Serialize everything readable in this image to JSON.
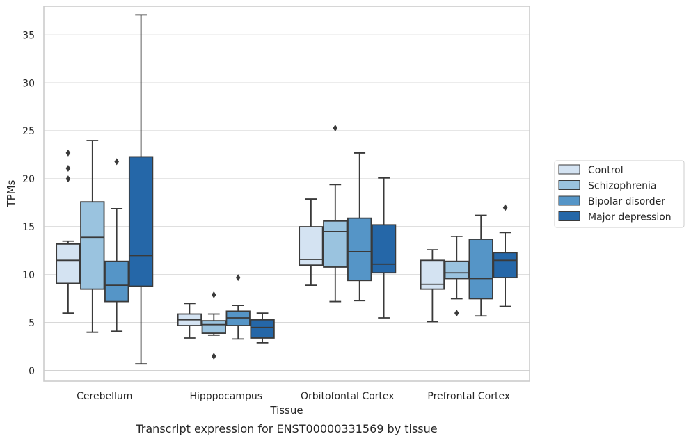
{
  "chart_data": {
    "type": "boxplot",
    "title": "",
    "caption": "Transcript expression for ENST00000331569 by tissue",
    "xlabel": "Tissue",
    "ylabel": "TPMs",
    "ylim": [
      -1.1,
      38.0
    ],
    "yticks": [
      0,
      5,
      10,
      15,
      20,
      25,
      30,
      35
    ],
    "ytick_labels": [
      "0",
      "5",
      "10",
      "15",
      "20",
      "25",
      "30",
      "35"
    ],
    "grid": "horizontal",
    "legend_position": "right",
    "categories": [
      "Cerebellum",
      "Hipppocampus",
      "Orbitofontal Cortex",
      "Prefrontal Cortex"
    ],
    "series": [
      {
        "name": "Control",
        "color": "#d4e3f2",
        "boxes": [
          {
            "whislo": 6.0,
            "q1": 9.1,
            "med": 11.5,
            "q3": 13.2,
            "whishi": 13.5,
            "fliers": [
              20.0,
              21.1,
              22.7
            ]
          },
          {
            "whislo": 3.4,
            "q1": 4.7,
            "med": 5.3,
            "q3": 5.9,
            "whishi": 7.0,
            "fliers": []
          },
          {
            "whislo": 8.9,
            "q1": 11.0,
            "med": 11.6,
            "q3": 15.0,
            "whishi": 17.9,
            "fliers": []
          },
          {
            "whislo": 5.1,
            "q1": 8.5,
            "med": 9.0,
            "q3": 11.5,
            "whishi": 12.6,
            "fliers": []
          }
        ]
      },
      {
        "name": "Schizophrenia",
        "color": "#9ac3df",
        "boxes": [
          {
            "whislo": 4.0,
            "q1": 8.5,
            "med": 13.9,
            "q3": 17.6,
            "whishi": 24.0,
            "fliers": []
          },
          {
            "whislo": 3.7,
            "q1": 3.9,
            "med": 4.8,
            "q3": 5.2,
            "whishi": 5.9,
            "fliers": [
              1.5,
              7.9
            ]
          },
          {
            "whislo": 7.2,
            "q1": 10.8,
            "med": 14.5,
            "q3": 15.6,
            "whishi": 19.4,
            "fliers": [
              25.3
            ]
          },
          {
            "whislo": 7.5,
            "q1": 9.6,
            "med": 10.2,
            "q3": 11.4,
            "whishi": 14.0,
            "fliers": [
              6.0
            ]
          }
        ]
      },
      {
        "name": "Bipolar disorder",
        "color": "#5595c7",
        "boxes": [
          {
            "whislo": 4.1,
            "q1": 7.2,
            "med": 8.9,
            "q3": 11.4,
            "whishi": 16.9,
            "fliers": [
              21.8
            ]
          },
          {
            "whislo": 3.3,
            "q1": 4.7,
            "med": 5.5,
            "q3": 6.2,
            "whishi": 6.8,
            "fliers": [
              9.7
            ]
          },
          {
            "whislo": 7.3,
            "q1": 9.4,
            "med": 12.4,
            "q3": 15.9,
            "whishi": 22.7,
            "fliers": []
          },
          {
            "whislo": 5.7,
            "q1": 7.5,
            "med": 9.6,
            "q3": 13.7,
            "whishi": 16.2,
            "fliers": []
          }
        ]
      },
      {
        "name": "Major depression",
        "color": "#2567a8",
        "boxes": [
          {
            "whislo": 0.7,
            "q1": 8.8,
            "med": 12.0,
            "q3": 22.3,
            "whishi": 37.1,
            "fliers": []
          },
          {
            "whislo": 2.9,
            "q1": 3.4,
            "med": 4.5,
            "q3": 5.3,
            "whishi": 6.0,
            "fliers": []
          },
          {
            "whislo": 5.5,
            "q1": 10.2,
            "med": 11.1,
            "q3": 15.2,
            "whishi": 20.1,
            "fliers": []
          },
          {
            "whislo": 6.7,
            "q1": 9.7,
            "med": 11.5,
            "q3": 12.3,
            "whishi": 14.4,
            "fliers": [
              17.0
            ]
          }
        ]
      }
    ]
  }
}
